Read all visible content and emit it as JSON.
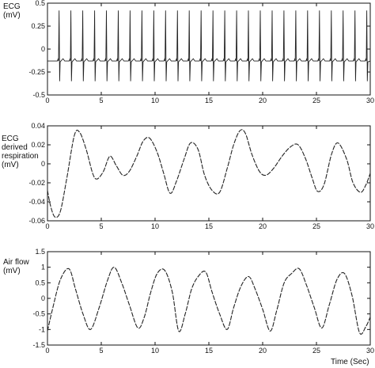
{
  "panels": [
    {
      "ylabel_lines": [
        "ECG",
        "(mV)"
      ]
    },
    {
      "ylabel_lines": [
        "ECG",
        "derived",
        "respiration",
        "(mV)"
      ]
    },
    {
      "ylabel_lines": [
        "Air flow",
        "(mV)"
      ]
    }
  ],
  "xlabel": "Time (Sec)",
  "chart_data": [
    {
      "type": "line",
      "title": "",
      "ylabel": "ECG (mV)",
      "xlabel": "",
      "xlim": [
        0,
        30
      ],
      "ylim": [
        -0.5,
        0.5
      ],
      "xticks": [
        0,
        5,
        10,
        15,
        20,
        25,
        30
      ],
      "yticks": [
        -0.5,
        -0.25,
        0,
        0.25,
        0.5
      ],
      "ytick_labels": [
        "-0.5",
        "-0.25",
        "0",
        "0.25",
        "0.5"
      ],
      "grid": false,
      "series": [
        {
          "baseline_mV": -0.13,
          "r_peak_mV": 0.42,
          "s_trough_mV": -0.35,
          "beat_times_sec": [
            1.1,
            2.2,
            3.3,
            4.4,
            5.5,
            6.6,
            7.7,
            8.8,
            9.9,
            11.0,
            12.1,
            13.2,
            14.3,
            15.4,
            16.5,
            17.6,
            18.7,
            19.8,
            20.9,
            22.0,
            23.1,
            24.2,
            25.3,
            26.4,
            27.5,
            28.6,
            29.7
          ]
        }
      ]
    },
    {
      "type": "line",
      "title": "",
      "ylabel": "ECG derived respiration (mV)",
      "xlabel": "",
      "xlim": [
        0,
        30
      ],
      "ylim": [
        -0.06,
        0.04
      ],
      "xticks": [
        0,
        5,
        10,
        15,
        20,
        25,
        30
      ],
      "yticks": [
        -0.06,
        -0.04,
        -0.02,
        0,
        0.02,
        0.04
      ],
      "ytick_labels": [
        "-0.06",
        "-0.04",
        "-0.02",
        "0",
        "0.02",
        "0.04"
      ],
      "grid": false,
      "series": [
        {
          "x": [
            0,
            0.3,
            0.7,
            1.2,
            1.8,
            2.5,
            3.0,
            3.6,
            4.2,
            4.6,
            5.2,
            5.8,
            6.4,
            7.0,
            7.6,
            8.3,
            8.9,
            9.5,
            10.2,
            10.8,
            11.4,
            12.0,
            12.7,
            13.3,
            14.0,
            14.6,
            15.3,
            16.0,
            16.7,
            17.3,
            17.9,
            18.4,
            19.0,
            19.7,
            20.3,
            21.0,
            21.8,
            22.6,
            23.3,
            24.0,
            24.6,
            25.1,
            25.7,
            26.4,
            27.0,
            27.8,
            28.4,
            29.1,
            29.6,
            30
          ],
          "y": [
            -0.028,
            -0.045,
            -0.056,
            -0.05,
            -0.015,
            0.03,
            0.033,
            0.015,
            -0.01,
            -0.016,
            -0.008,
            0.008,
            -0.002,
            -0.012,
            -0.008,
            0.008,
            0.024,
            0.027,
            0.012,
            -0.01,
            -0.031,
            -0.018,
            0.005,
            0.022,
            0.015,
            -0.012,
            -0.028,
            -0.03,
            -0.005,
            0.02,
            0.035,
            0.032,
            0.01,
            -0.008,
            -0.012,
            -0.005,
            0.008,
            0.018,
            0.02,
            0.005,
            -0.015,
            -0.029,
            -0.022,
            0.01,
            0.022,
            0.005,
            -0.02,
            -0.03,
            -0.022,
            -0.01
          ]
        }
      ]
    },
    {
      "type": "line",
      "title": "",
      "ylabel": "Air flow (mV)",
      "xlabel": "Time (Sec)",
      "xlim": [
        0,
        30
      ],
      "ylim": [
        -1.5,
        1.5
      ],
      "xticks": [
        0,
        5,
        10,
        15,
        20,
        25,
        30
      ],
      "yticks": [
        -1.5,
        -1,
        -0.5,
        0,
        0.5,
        1,
        1.5
      ],
      "ytick_labels": [
        "-1.5",
        "-1",
        "-0.5",
        "0",
        "0.5",
        "1",
        "1.5"
      ],
      "grid": false,
      "series": [
        {
          "x": [
            0,
            0.5,
            1.2,
            2.0,
            2.6,
            3.3,
            4.0,
            4.8,
            5.6,
            6.2,
            6.9,
            7.6,
            8.4,
            9.0,
            9.6,
            10.2,
            10.9,
            11.6,
            12.2,
            12.8,
            13.4,
            14.0,
            14.7,
            15.3,
            16.0,
            16.7,
            17.3,
            18.0,
            18.7,
            19.3,
            20.0,
            20.7,
            21.3,
            22.0,
            22.7,
            23.4,
            24.1,
            24.8,
            25.5,
            26.2,
            26.9,
            27.6,
            28.3,
            29.0,
            29.6,
            30
          ],
          "y": [
            -1.05,
            -0.3,
            0.6,
            0.95,
            0.3,
            -0.5,
            -1.0,
            -0.3,
            0.6,
            1.0,
            0.5,
            -0.2,
            -0.95,
            -0.6,
            0.2,
            0.8,
            0.9,
            0.2,
            -1.05,
            -0.5,
            0.3,
            0.7,
            0.85,
            0.2,
            -0.5,
            -1.0,
            -0.3,
            0.4,
            0.7,
            0.3,
            -0.35,
            -1.05,
            -0.4,
            0.5,
            0.8,
            0.95,
            0.4,
            -0.3,
            -0.95,
            -0.2,
            0.6,
            0.8,
            0.1,
            -1.1,
            -0.9,
            -0.6
          ]
        }
      ]
    }
  ],
  "colors": {
    "line": "#222222",
    "axis": "#111111",
    "background": "#ffffff"
  }
}
